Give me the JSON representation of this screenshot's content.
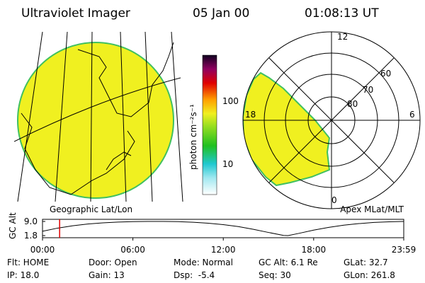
{
  "header": {
    "instrument": "Ultraviolet Imager",
    "date": "05 Jan 00",
    "time": "01:08:13 UT"
  },
  "map_panel": {
    "label": "Geographic Lat/Lon"
  },
  "colorbar": {
    "label": "photon cm⁻²s⁻¹",
    "ticks": [
      "100",
      "10"
    ]
  },
  "polar_panel": {
    "label": "Apex MLat/MLT",
    "mlt_labels": [
      "12",
      "6",
      "0",
      "18"
    ],
    "lat_labels": [
      "60",
      "70",
      "80"
    ]
  },
  "chart_data": {
    "type": "line",
    "ylabel": "GC Alt",
    "x": [
      0,
      1,
      2,
      3,
      4,
      5,
      6,
      7,
      8,
      9,
      10,
      11,
      12,
      13,
      14,
      15,
      16,
      16.3,
      17,
      18,
      19,
      20,
      21,
      22,
      23,
      23.98
    ],
    "values": [
      4.0,
      5.6,
      6.8,
      7.7,
      8.3,
      8.7,
      8.9,
      9.0,
      9.0,
      8.9,
      8.6,
      8.1,
      7.4,
      6.4,
      5.0,
      3.4,
      1.9,
      1.8,
      2.9,
      4.6,
      6.0,
      7.1,
      7.9,
      8.5,
      8.8,
      9.0
    ],
    "color": "#000000",
    "marker": 1.137,
    "marker_color": "#e00000",
    "xlim": [
      0,
      23.98
    ],
    "ylim": [
      1.8,
      9.0
    ],
    "xticks": [
      {
        "value": 0,
        "label": "00:00"
      },
      {
        "value": 6,
        "label": "06:00"
      },
      {
        "value": 12,
        "label": "12:00"
      },
      {
        "value": 18,
        "label": "18:00"
      },
      {
        "value": 23.98,
        "label": "23:59"
      }
    ],
    "yticks": [
      {
        "value": 1.8,
        "label": "1.8"
      },
      {
        "value": 9.0,
        "label": "9.0"
      }
    ]
  },
  "status": [
    [
      "Flt: HOME",
      "Door: Open",
      "Mode: Normal",
      "GC Alt: 6.1 Re",
      "GLat: 32.7"
    ],
    [
      "IP: 18.0",
      "Gain: 13",
      "Dsp:  -5.4",
      "Seq: 30",
      "GLon: 261.8"
    ]
  ]
}
